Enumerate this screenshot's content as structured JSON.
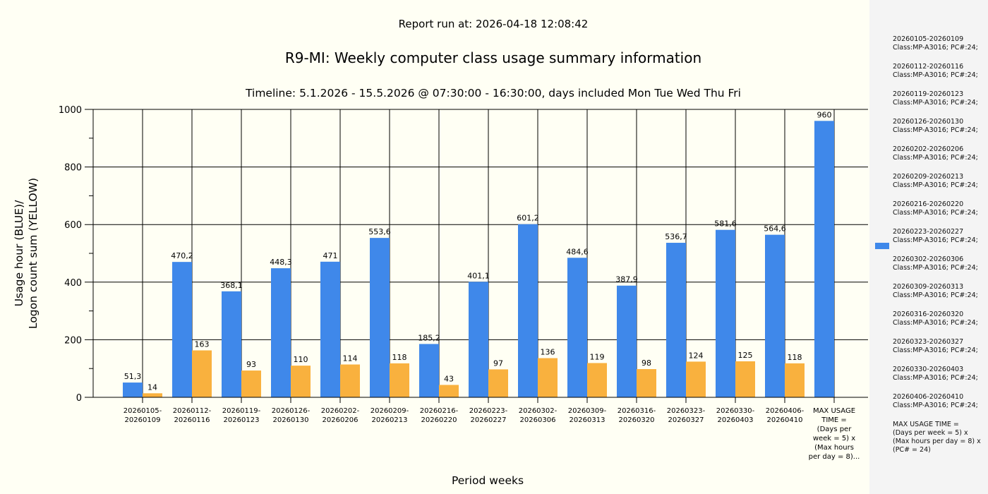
{
  "chart_data": {
    "type": "bar",
    "report_run": "Report run at: 2026-04-18 12:08:42",
    "title": "R9-MI: Weekly computer class usage summary information",
    "subtitle": "Timeline:  5.1.2026  - 15.5.2026  @  07:30:00 -  16:30:00, days included Mon Tue Wed Thu Fri",
    "xlabel": "Period weeks",
    "ylabel_line1": "Usage hour (BLUE)/",
    "ylabel_line2": "Logon count sum (YELLOW)",
    "ylim": [
      0,
      1000
    ],
    "yticks": [
      "0",
      "200",
      "400",
      "600",
      "800",
      "1000"
    ],
    "grid": true,
    "categories": [
      [
        "20260105-",
        "20260109"
      ],
      [
        "20260112-",
        "20260116"
      ],
      [
        "20260119-",
        "20260123"
      ],
      [
        "20260126-",
        "20260130"
      ],
      [
        "20260202-",
        "20260206"
      ],
      [
        "20260209-",
        "20260213"
      ],
      [
        "20260216-",
        "20260220"
      ],
      [
        "20260223-",
        "20260227"
      ],
      [
        "20260302-",
        "20260306"
      ],
      [
        "20260309-",
        "20260313"
      ],
      [
        "20260316-",
        "20260320"
      ],
      [
        "20260323-",
        "20260327"
      ],
      [
        "20260330-",
        "20260403"
      ],
      [
        "20260406-",
        "20260410"
      ],
      [
        "MAX USAGE",
        "TIME =",
        "(Days per",
        "week = 5) x",
        "(Max hours",
        "per day = 8)..."
      ]
    ],
    "series": [
      {
        "name": "Usage hour",
        "color": "#3f88ea",
        "values": [
          51.3,
          470.2,
          368.1,
          448.3,
          471,
          553.6,
          185.2,
          401.1,
          601.2,
          484.6,
          387.9,
          536.7,
          581.6,
          564.6,
          960
        ],
        "labels": [
          "51,3",
          "470,2",
          "368,1",
          "448,3",
          "471",
          "553,6",
          "185,2",
          "401,1",
          "601,2",
          "484,6",
          "387,9",
          "536,7",
          "581,6",
          "564,6",
          "960"
        ]
      },
      {
        "name": "Logon count sum",
        "color": "#f9b13e",
        "values": [
          14,
          163,
          93,
          110,
          114,
          118,
          43,
          97,
          136,
          119,
          98,
          124,
          125,
          118,
          null
        ],
        "labels": [
          "14",
          "163",
          "93",
          "110",
          "114",
          "118",
          "43",
          "97",
          "136",
          "119",
          "98",
          "124",
          "125",
          "118",
          ""
        ]
      }
    ]
  },
  "legend": {
    "items": [
      [
        "20260105-20260109",
        "Class:MP-A3016; PC#:24;"
      ],
      [
        "20260112-20260116",
        "Class:MP-A3016; PC#:24;"
      ],
      [
        "20260119-20260123",
        "Class:MP-A3016; PC#:24;"
      ],
      [
        "20260126-20260130",
        "Class:MP-A3016; PC#:24;"
      ],
      [
        "20260202-20260206",
        "Class:MP-A3016; PC#:24;"
      ],
      [
        "20260209-20260213",
        "Class:MP-A3016; PC#:24;"
      ],
      [
        "20260216-20260220",
        "Class:MP-A3016; PC#:24;"
      ],
      [
        "20260223-20260227",
        "Class:MP-A3016; PC#:24;"
      ],
      [
        "20260302-20260306",
        "Class:MP-A3016; PC#:24;"
      ],
      [
        "20260309-20260313",
        "Class:MP-A3016; PC#:24;"
      ],
      [
        "20260316-20260320",
        "Class:MP-A3016; PC#:24;"
      ],
      [
        "20260323-20260327",
        "Class:MP-A3016; PC#:24;"
      ],
      [
        "20260330-20260403",
        "Class:MP-A3016; PC#:24;"
      ],
      [
        "20260406-20260410",
        "Class:MP-A3016; PC#:24;"
      ],
      [
        "MAX USAGE TIME =",
        "(Days per week = 5) x (Max hours per day = 8) x (PC# = 24)"
      ]
    ],
    "swatch_color": "#3f88ea"
  }
}
